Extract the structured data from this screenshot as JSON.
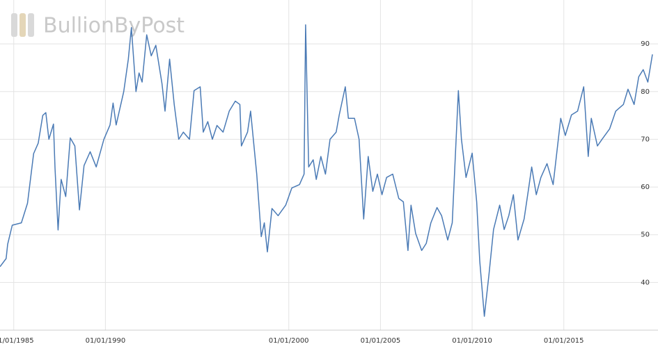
{
  "chart_data": {
    "type": "line",
    "logo": "BullionByPost",
    "xlim": [
      "1984-04",
      "2019-11"
    ],
    "xticks": [
      {
        "value": "1985-01",
        "label": "01/01/1985"
      },
      {
        "value": "1990-01",
        "label": "01/01/1990"
      },
      {
        "value": "2000-01",
        "label": "01/01/2000"
      },
      {
        "value": "2005-01",
        "label": "01/01/2005"
      },
      {
        "value": "2010-01",
        "label": "01/01/2010"
      },
      {
        "value": "2015-01",
        "label": "01/01/2015"
      }
    ],
    "ylim": [
      30,
      99.2
    ],
    "yticks": [
      40,
      50,
      60,
      70,
      80,
      90
    ],
    "grid": true,
    "x": [
      "1984-04",
      "1984-08",
      "1984-09",
      "1984-12",
      "1985-06",
      "1985-10",
      "1986-02",
      "1986-05",
      "1986-08",
      "1986-10",
      "1986-12",
      "1987-03",
      "1987-04",
      "1987-06",
      "1987-08",
      "1987-11",
      "1988-02",
      "1988-05",
      "1988-08",
      "1988-11",
      "1989-03",
      "1989-07",
      "1989-12",
      "1990-04",
      "1990-06",
      "1990-08",
      "1991-01",
      "1991-04",
      "1991-06",
      "1991-09",
      "1991-11",
      "1992-01",
      "1992-04",
      "1992-07",
      "1992-10",
      "1993-02",
      "1993-04",
      "1993-07",
      "1993-10",
      "1994-01",
      "1994-04",
      "1994-08",
      "1994-11",
      "1995-03",
      "1995-05",
      "1995-08",
      "1995-11",
      "1996-02",
      "1996-06",
      "1996-10",
      "1997-02",
      "1997-05",
      "1997-06",
      "1997-10",
      "1997-12",
      "1998-04",
      "1998-07",
      "1998-09",
      "1998-11",
      "1999-02",
      "1999-06",
      "1999-11",
      "2000-03",
      "2000-08",
      "2000-11",
      "2000-12",
      "2001-02",
      "2001-05",
      "2001-07",
      "2001-10",
      "2002-01",
      "2002-04",
      "2002-08",
      "2002-10",
      "2003-02",
      "2003-04",
      "2003-08",
      "2003-11",
      "2004-02",
      "2004-05",
      "2004-08",
      "2004-11",
      "2005-02",
      "2005-05",
      "2005-09",
      "2006-01",
      "2006-04",
      "2006-07",
      "2006-09",
      "2006-12",
      "2007-04",
      "2007-07",
      "2007-10",
      "2008-02",
      "2008-05",
      "2008-09",
      "2008-12",
      "2009-04",
      "2009-06",
      "2009-09",
      "2010-01",
      "2010-04",
      "2010-06",
      "2010-09",
      "2010-12",
      "2011-03",
      "2011-07",
      "2011-10",
      "2012-01",
      "2012-04",
      "2012-07",
      "2012-11",
      "2013-02",
      "2013-04",
      "2013-07",
      "2013-10",
      "2014-02",
      "2014-06",
      "2014-11",
      "2015-02",
      "2015-06",
      "2015-10",
      "2016-02",
      "2016-05",
      "2016-07",
      "2016-11",
      "2017-02",
      "2017-07",
      "2017-11",
      "2018-04",
      "2018-07",
      "2018-11",
      "2019-02",
      "2019-05",
      "2019-08",
      "2019-11"
    ],
    "series": [
      {
        "color": "#4a7ab5",
        "values": [
          43.3,
          45,
          48,
          52,
          52.5,
          56.6,
          67,
          69.2,
          75,
          75.6,
          70,
          73.2,
          64,
          51,
          61.6,
          58,
          70.3,
          68.6,
          55.2,
          64.5,
          67.4,
          64.2,
          70,
          73,
          77.6,
          73,
          80,
          86.8,
          93.4,
          80,
          83.9,
          82,
          91.9,
          87.5,
          89.7,
          81.7,
          75.9,
          86.8,
          77.3,
          70,
          71.5,
          70,
          80.2,
          81,
          71.5,
          73.7,
          70,
          72.9,
          71.5,
          75.9,
          78,
          77.3,
          68.6,
          71.5,
          75.9,
          62.7,
          49.6,
          52.5,
          46.4,
          55.5,
          54,
          56.2,
          59.8,
          60.5,
          62.7,
          94,
          64.2,
          65.7,
          61.6,
          66.4,
          62.7,
          70,
          71.5,
          75.1,
          81,
          74.4,
          74.4,
          70,
          53.3,
          66.4,
          59.1,
          62.7,
          58.4,
          62,
          62.7,
          57.6,
          56.9,
          46.7,
          56.2,
          50.3,
          46.7,
          48.2,
          52.5,
          55.7,
          54,
          48.9,
          52.5,
          80.2,
          70,
          62,
          67.1,
          56.9,
          44.5,
          32.9,
          41.6,
          51.1,
          56.2,
          51.1,
          54,
          58.4,
          48.9,
          53.3,
          59.8,
          64.2,
          58.4,
          62,
          64.9,
          60.5,
          74.4,
          70.8,
          75.1,
          75.9,
          81,
          66.4,
          74.4,
          68.6,
          70,
          72.2,
          75.9,
          77.3,
          80.5,
          77.3,
          83.1,
          84.6,
          82,
          87.8
        ]
      }
    ]
  }
}
